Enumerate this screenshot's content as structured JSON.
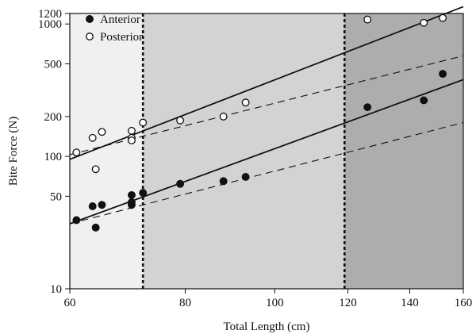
{
  "chart_data": {
    "type": "scatter",
    "title": "",
    "xlabel": "Total Length (cm)",
    "ylabel": "Bite Force (N)",
    "x_scale": "log",
    "y_scale": "log",
    "xlim": [
      60,
      160
    ],
    "ylim": [
      10,
      1200
    ],
    "x_ticks": [
      60,
      80,
      100,
      120,
      140,
      160
    ],
    "y_ticks": [
      10,
      50,
      100,
      200,
      500,
      1000,
      1200
    ],
    "grid": false,
    "legend_position": "top-left",
    "shaded_regions": [
      {
        "x_from": 60,
        "x_to": 72,
        "color": "#f0f0f0"
      },
      {
        "x_from": 72,
        "x_to": 119,
        "color": "#d3d3d3"
      },
      {
        "x_from": 119,
        "x_to": 160,
        "color": "#adadad"
      }
    ],
    "vertical_lines": [
      72,
      119
    ],
    "series": [
      {
        "name": "Anterior",
        "marker": "filled-circle",
        "points": [
          [
            61,
            33
          ],
          [
            63.5,
            42
          ],
          [
            64,
            29
          ],
          [
            65,
            43
          ],
          [
            70,
            51
          ],
          [
            70,
            45
          ],
          [
            70,
            43
          ],
          [
            72,
            53
          ],
          [
            79,
            62
          ],
          [
            88,
            65
          ],
          [
            93,
            70
          ],
          [
            126,
            235
          ],
          [
            145,
            265
          ],
          [
            152,
            420
          ]
        ]
      },
      {
        "name": "Posterior",
        "marker": "open-circle",
        "points": [
          [
            61,
            107
          ],
          [
            63.5,
            138
          ],
          [
            64,
            80
          ],
          [
            65,
            153
          ],
          [
            70,
            156
          ],
          [
            70,
            138
          ],
          [
            70,
            132
          ],
          [
            72,
            180
          ],
          [
            79,
            187
          ],
          [
            88,
            200
          ],
          [
            93,
            255
          ],
          [
            126,
            1080
          ],
          [
            145,
            1020
          ],
          [
            152,
            1110
          ]
        ]
      }
    ],
    "fit_lines": [
      {
        "series": "Posterior",
        "style": "solid",
        "from": [
          60,
          95
        ],
        "to": [
          160,
          1350
        ]
      },
      {
        "series": "Posterior",
        "style": "dashed",
        "from": [
          60,
          103
        ],
        "to": [
          160,
          575
        ]
      },
      {
        "series": "Anterior",
        "style": "solid",
        "from": [
          60,
          31
        ],
        "to": [
          160,
          380
        ]
      },
      {
        "series": "Anterior",
        "style": "dashed",
        "from": [
          60,
          31
        ],
        "to": [
          160,
          180
        ]
      }
    ]
  }
}
